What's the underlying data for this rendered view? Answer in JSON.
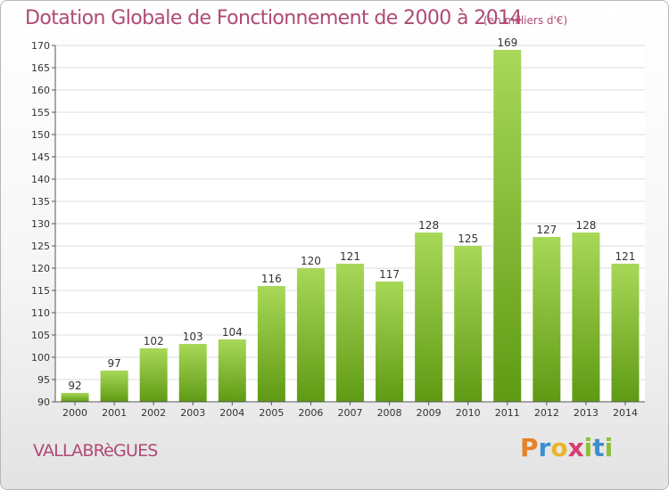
{
  "header": {
    "title": "Dotation Globale de Fonctionnement de 2000 à 2014",
    "unit": "(en milliers d'€)"
  },
  "footer": {
    "commune": "VALLABRèGUES",
    "brand_letters": [
      "P",
      "r",
      "o",
      "x",
      "i",
      "t",
      "i"
    ],
    "brand_colors": [
      "#e8812a",
      "#3b8fd0",
      "#e8b42a",
      "#d83c6e",
      "#8fbf3a",
      "#3b8fd0",
      "#8fbf3a"
    ]
  },
  "colors": {
    "bar_light": "#a8d858",
    "bar_dark": "#5f9a14",
    "grid": "#dddddd",
    "axis": "#555555"
  },
  "chart_data": {
    "type": "bar",
    "title": "Dotation Globale de Fonctionnement de 2000 à 2014",
    "subtitle": "(en milliers d'€)",
    "categories": [
      "2000",
      "2001",
      "2002",
      "2003",
      "2004",
      "2005",
      "2006",
      "2007",
      "2008",
      "2009",
      "2010",
      "2011",
      "2012",
      "2013",
      "2014"
    ],
    "values": [
      92,
      97,
      102,
      103,
      104,
      116,
      120,
      121,
      117,
      128,
      125,
      169,
      127,
      128,
      121
    ],
    "ylim": [
      90,
      170
    ],
    "yticks": [
      90,
      95,
      100,
      105,
      110,
      115,
      120,
      125,
      130,
      135,
      140,
      145,
      150,
      155,
      160,
      165,
      170
    ],
    "grid": true,
    "legend": "none"
  }
}
